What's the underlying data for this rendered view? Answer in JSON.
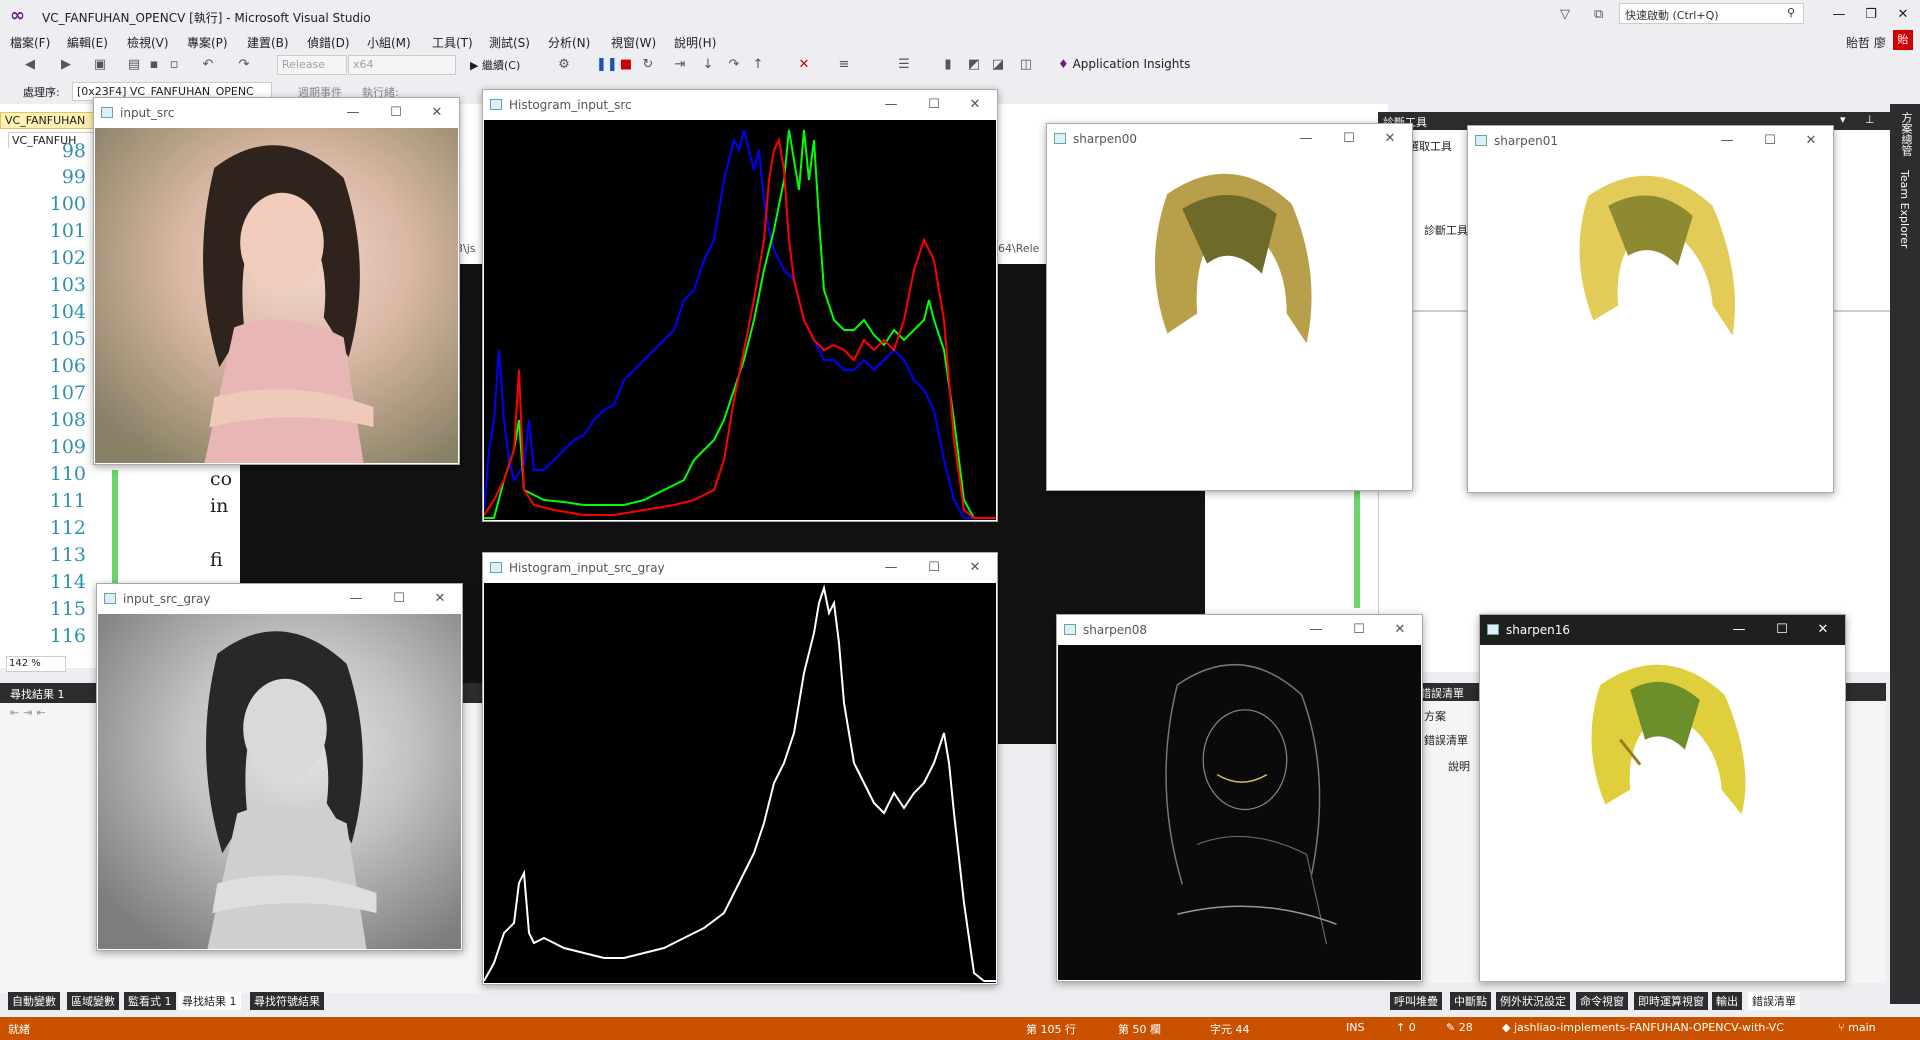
{
  "app": {
    "title": "VC_FANFUHAN_OPENCV [執行] - Microsoft Visual Studio",
    "quick_launch_placeholder": "快速啟動 (Ctrl+Q)",
    "user_name": "貽哲 廖",
    "user_initial": "貽",
    "window_controls": [
      "—",
      "❐",
      "✕"
    ]
  },
  "menu": [
    "檔案(F)",
    "編輯(E)",
    "檢視(V)",
    "專案(P)",
    "建置(B)",
    "偵錯(D)",
    "小組(M)",
    "工具(T)",
    "測試(S)",
    "分析(N)",
    "視窗(W)",
    "說明(H)"
  ],
  "toolbar": {
    "configuration": "Release",
    "platform": "x64",
    "continue_label": "繼續(C)",
    "app_insights_label": "Application Insights"
  },
  "process_bar": {
    "label": "處理序:",
    "process": "[0x23F4] VC_FANFUHAN_OPENC",
    "lifecycle": "週期事件",
    "thread": "執行緒:"
  },
  "editor": {
    "doc_tab": "VC_FANFUHAN",
    "scope": "VC_FANFUH",
    "line_numbers": [
      "98",
      "99",
      "100",
      "101",
      "102",
      "103",
      "104",
      "105",
      "106",
      "107",
      "108",
      "109",
      "110",
      "111",
      "112",
      "113",
      "114",
      "115",
      "116"
    ],
    "partial_code": [
      "co",
      "in",
      "",
      "fi",
      "co"
    ],
    "zoom": "142 %",
    "path_fragment_1": "3\\js",
    "path_fragment_2": "64\\Rele"
  },
  "diagnostics": {
    "title": "診斷工具",
    "tools_label": "選取工具",
    "section_label": "診斷工具"
  },
  "find_panel": {
    "title": "尋找結果 1"
  },
  "right_pane": {
    "title": "錯誤清單",
    "items": [
      "方案",
      "錯誤清單",
      "說明"
    ]
  },
  "side_tabs": [
    "方案總管",
    "Team Explorer"
  ],
  "bottom_tabs_left": [
    "自動變數",
    "區域變數",
    "監看式 1",
    "尋找結果 1",
    "尋找符號結果"
  ],
  "bottom_tabs_left_active": "尋找結果 1",
  "bottom_tabs_right": [
    "呼叫堆疊",
    "中斷點",
    "例外狀況設定",
    "命令視窗",
    "即時運算視窗",
    "輸出",
    "錯誤清單"
  ],
  "bottom_tabs_right_active": "錯誤清單",
  "status": {
    "ready": "就緒",
    "line": "第 105 行",
    "col": "第 50 欄",
    "char": "字元 44",
    "ins": "INS",
    "up_count": "0",
    "edit_count": "28",
    "repo": "jashliao-implements-FANFUHAN-OPENCV-with-VC",
    "branch": "main"
  },
  "cv_windows": [
    {
      "key": "input_src",
      "title": "input_src"
    },
    {
      "key": "hist_src",
      "title": "Histogram_input_src"
    },
    {
      "key": "sharpen00",
      "title": "sharpen00"
    },
    {
      "key": "sharpen01",
      "title": "sharpen01"
    },
    {
      "key": "input_src_gray",
      "title": "input_src_gray"
    },
    {
      "key": "hist_gray",
      "title": "Histogram_input_src_gray"
    },
    {
      "key": "sharpen08",
      "title": "sharpen08"
    },
    {
      "key": "sharpen16",
      "title": "sharpen16"
    }
  ],
  "colors": {
    "status_bar": "#ca5100",
    "line_numbers": "#2b91af",
    "vs_purple": "#68217a",
    "hist_blue": "#0000ff",
    "hist_green": "#00ff00",
    "hist_red": "#ff0000"
  }
}
